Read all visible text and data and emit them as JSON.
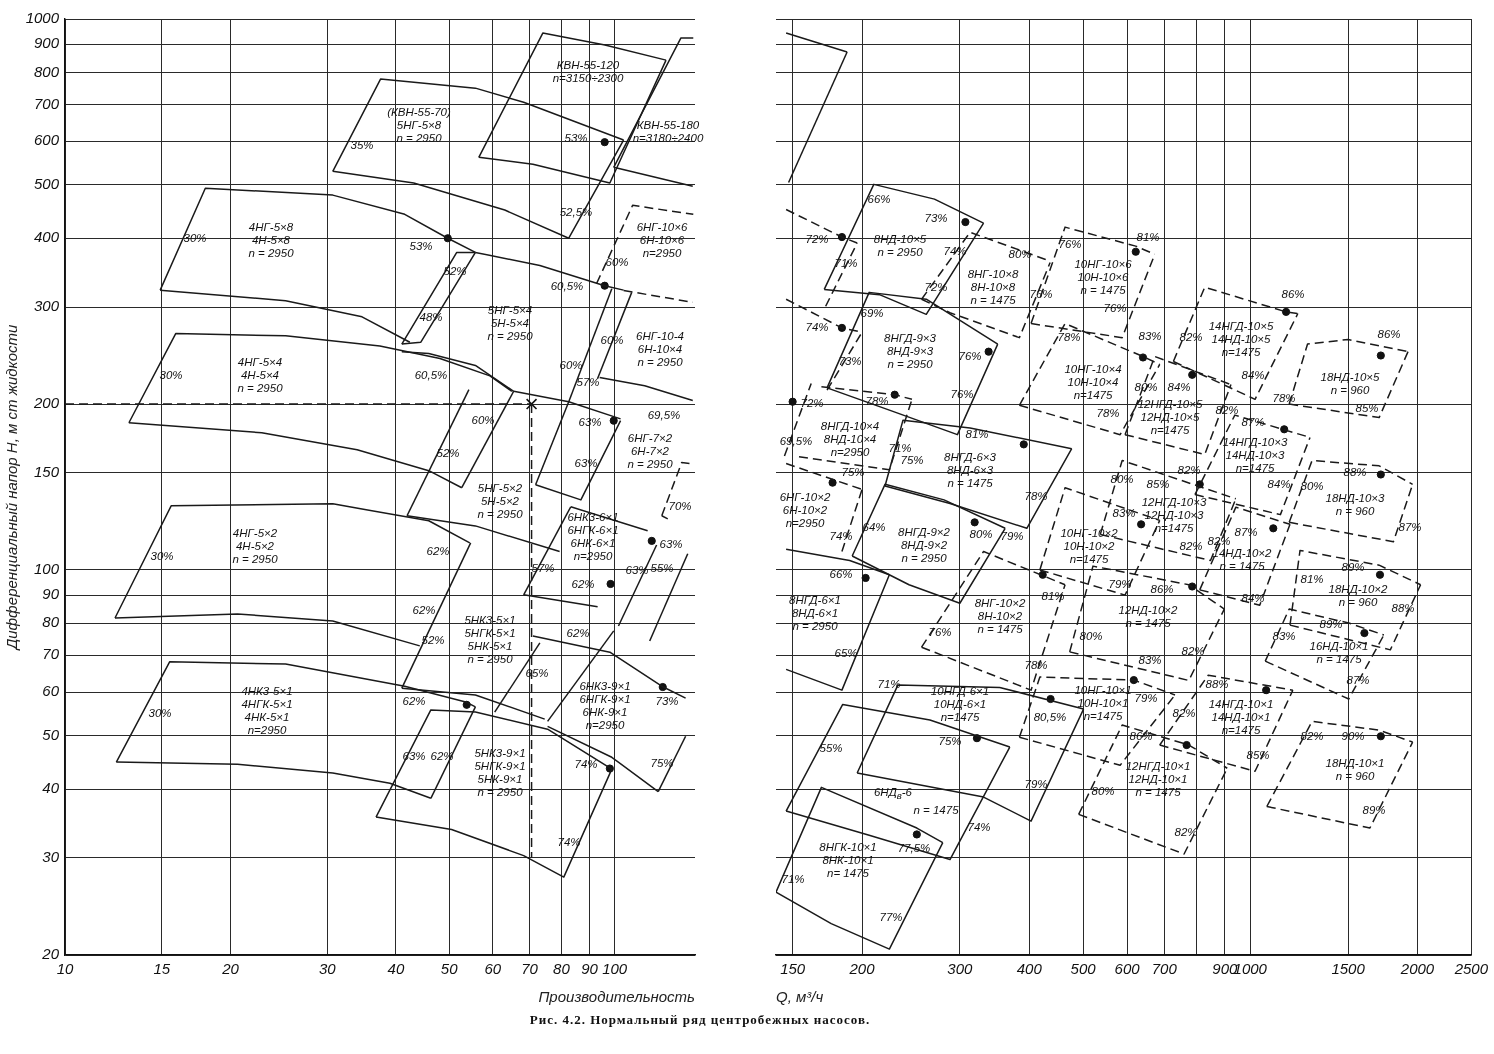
{
  "chart_data": [
    {
      "type": "line",
      "xlabel": "Производительность",
      "ylabel": "Дифференциальный напор H, м ст жидкости",
      "log": "xy",
      "xlim": [
        10,
        140
      ],
      "ylim": [
        20,
        1000
      ],
      "xticks": [
        10,
        15,
        20,
        30,
        40,
        50,
        60,
        70,
        80,
        90,
        100
      ],
      "yticks": [
        20,
        30,
        40,
        50,
        60,
        70,
        80,
        90,
        100,
        150,
        200,
        300,
        400,
        500,
        600,
        700,
        800,
        900,
        1000
      ],
      "grid": true,
      "line_style": "solid",
      "series": [
        {
          "color": "#1a1a1a",
          "x": [
            56.6,
            74,
            96,
            124
          ],
          "values": [
            561,
            943,
            897,
            842
          ]
        },
        {
          "color": "#1a1a1a",
          "x": [
            56.6,
            71,
            98,
            124
          ],
          "values": [
            561,
            545,
            504,
            842
          ]
        },
        {
          "color": "#1a1a1a",
          "x": [
            30.7,
            37.5,
            55.8,
            68.3,
            103.8
          ],
          "values": [
            529,
            778,
            749,
            706,
            603
          ]
        },
        {
          "color": "#1a1a1a",
          "x": [
            30.7,
            43.1,
            63.1,
            82.5,
            103.8
          ],
          "values": [
            529,
            504,
            450,
            400,
            603
          ]
        },
        {
          "color": "#1a1a1a",
          "x": [
            99.6,
            132,
            139
          ],
          "values": [
            538,
            924,
            924
          ]
        },
        {
          "color": "#1a1a1a",
          "x": [
            99.6,
            138.7
          ],
          "values": [
            538,
            497
          ]
        },
        {
          "color": "#1a1a1a",
          "x": [
            14.9,
            25.2,
            34.7,
            42.4
          ],
          "values": [
            322,
            308,
            288,
            259
          ]
        },
        {
          "color": "#1a1a1a",
          "x": [
            14.9,
            18,
            30.7,
            41.5,
            49.7,
            55.8
          ],
          "values": [
            322,
            493,
            479,
            442,
            400,
            377
          ]
        },
        {
          "color": "#1a1a1a",
          "x": [
            41,
            51.6,
            55.8
          ],
          "values": [
            257,
            377,
            377
          ]
        },
        {
          "color": "#1a1a1a",
          "x": [
            41,
            44.4,
            55.8
          ],
          "values": [
            257,
            259,
            377
          ]
        },
        {
          "color": "#1a1a1a",
          "x": [
            55.8,
            73.1,
            95.9,
            103.8
          ],
          "values": [
            377,
            357,
            328,
            322
          ]
        },
        {
          "color": "#1a1a1a",
          "x": [
            82.5,
            98.8
          ],
          "values": [
            202,
            324
          ]
        },
        {
          "color": "#1a1a1a",
          "x": [
            93.1,
            107.4
          ],
          "values": [
            222.5,
            319
          ]
        },
        {
          "color": "#1a1a1a",
          "x": [
            41,
            45.9,
            55.8,
            65.5,
            82.5,
            102.5
          ],
          "values": [
            249,
            247,
            235,
            211,
            202,
            188
          ]
        },
        {
          "color": "#1a1a1a",
          "x": [
            13.07,
            15.9,
            25.2,
            37.4,
            48.1,
            59.3,
            65
          ],
          "values": [
            185,
            268.5,
            266,
            255,
            242,
            225,
            211
          ]
        },
        {
          "color": "#1a1a1a",
          "x": [
            13.07,
            22.8,
            34,
            45.9,
            52.7
          ],
          "values": [
            185,
            177.4,
            165.3,
            151.4,
            141
          ]
        },
        {
          "color": "#1a1a1a",
          "x": [
            41.9,
            54.3
          ],
          "values": [
            125.4,
            212.5
          ]
        },
        {
          "color": "#1a1a1a",
          "x": [
            41.9,
            55.8,
            79.4
          ],
          "values": [
            125.4,
            120.2,
            108
          ]
        },
        {
          "color": "#1a1a1a",
          "x": [
            52.7,
            65.5
          ],
          "values": [
            141,
            211
          ]
        },
        {
          "color": "#1a1a1a",
          "x": [
            71.8,
            82.5
          ],
          "values": [
            142.8,
            202
          ]
        },
        {
          "color": "#1a1a1a",
          "x": [
            71.8,
            86.8,
            102.5
          ],
          "values": [
            142.8,
            134,
            186.6
          ]
        },
        {
          "color": "#1a1a1a",
          "x": [
            93.9,
            113.4,
            138.7
          ],
          "values": [
            223.4,
            216,
            203
          ]
        },
        {
          "color": "#1a1a1a",
          "x": [
            12.33,
            20.6,
            30.7,
            44.2
          ],
          "values": [
            81.8,
            83.2,
            80.8,
            72.8
          ]
        },
        {
          "color": "#1a1a1a",
          "x": [
            12.33,
            15.6,
            30.7,
            45.9,
            54.5
          ],
          "values": [
            81.8,
            130.7,
            131.8,
            122.8,
            112
          ]
        },
        {
          "color": "#1a1a1a",
          "x": [
            41,
            54.7
          ],
          "values": [
            61,
            112
          ]
        },
        {
          "color": "#1a1a1a",
          "x": [
            41,
            55.8,
            74.6
          ],
          "values": [
            61,
            59.3,
            53.6
          ]
        },
        {
          "color": "#1a1a1a",
          "x": [
            60.5,
            73.1
          ],
          "values": [
            55.2,
            73.7
          ]
        },
        {
          "color": "#1a1a1a",
          "x": [
            12.4,
            15.5,
            25.2,
            41.5,
            53.8,
            55.8
          ],
          "values": [
            44.8,
            68.1,
            67.5,
            61.5,
            57.5,
            56.4
          ]
        },
        {
          "color": "#1a1a1a",
          "x": [
            12.4,
            20.6,
            30.7,
            39,
            46.3
          ],
          "values": [
            44.8,
            44.4,
            42.8,
            41,
            38.5
          ]
        },
        {
          "color": "#1a1a1a",
          "x": [
            46.3,
            55.8
          ],
          "values": [
            38.5,
            56.4
          ]
        },
        {
          "color": "#1a1a1a",
          "x": [
            36.8,
            46.3,
            55.8,
            75.5,
            98.8
          ],
          "values": [
            35.6,
            55.7,
            55.2,
            51.4,
            43.5
          ]
        },
        {
          "color": "#1a1a1a",
          "x": [
            36.8,
            50.5,
            68.3,
            80.8,
            98.8
          ],
          "values": [
            35.6,
            33.8,
            30.3,
            27.7,
            43.5
          ]
        },
        {
          "color": "#1a1a1a",
          "x": [
            71,
            98,
            121.8,
            134.6
          ],
          "values": [
            75.9,
            70.9,
            61.5,
            58.5
          ]
        },
        {
          "color": "#1a1a1a",
          "x": [
            75.5,
            99.6
          ],
          "values": [
            53.1,
            77.5
          ]
        },
        {
          "color": "#1a1a1a",
          "x": [
            75.5,
            98.8,
            120
          ],
          "values": [
            52,
            45.7,
            39.6
          ]
        },
        {
          "color": "#1a1a1a",
          "x": [
            120,
            134.6
          ],
          "values": [
            39.6,
            49.9
          ]
        },
        {
          "color": "#1a1a1a",
          "x": [
            83.2,
            114.8
          ],
          "values": [
            130.2,
            117.8
          ]
        },
        {
          "color": "#1a1a1a",
          "x": [
            68.3,
            83.2
          ],
          "values": [
            90.1,
            130.2
          ]
        },
        {
          "color": "#1a1a1a",
          "x": [
            68.3,
            93.1
          ],
          "values": [
            90.1,
            85.7
          ]
        },
        {
          "color": "#1a1a1a",
          "x": [
            101.6,
            119.2
          ],
          "values": [
            79.1,
            111
          ]
        },
        {
          "color": "#1a1a1a",
          "x": [
            115.8,
            135.8
          ],
          "values": [
            74.3,
            107
          ]
        },
        {
          "color": "#1a1a1a",
          "line_style": "dashed",
          "x": [
            92.7,
            107.8,
            139
          ],
          "values": [
            331,
            459,
            442
          ]
        },
        {
          "color": "#1a1a1a",
          "line_style": "dashed",
          "x": [
            103.8,
            138.7
          ],
          "values": [
            321.5,
            306
          ]
        },
        {
          "color": "#1a1a1a",
          "line_style": "dashed",
          "x": [
            10,
            70.6
          ],
          "values": [
            200,
            200
          ]
        },
        {
          "color": "#1a1a1a",
          "line_style": "dashed",
          "x": [
            70.6,
            70.6
          ],
          "values": [
            200,
            30
          ]
        },
        {
          "color": "#1a1a1a",
          "line_style": "dashed",
          "x": [
            121.8,
            132.4,
            136.8
          ],
          "values": [
            125.4,
            156.6,
            156
          ]
        },
        {
          "color": "#1a1a1a",
          "line_style": "dashed",
          "x": [
            121.8,
            124.9
          ],
          "values": [
            125.4,
            123.8
          ]
        },
        {
          "type": "scatter",
          "marker": "circle",
          "color": "#111111",
          "x": [
            95.9,
            49.7,
            95.9,
            99.6,
            98.3,
            116.8,
            122.3,
            53.8,
            98
          ],
          "values": [
            597.6,
            400,
            328,
            186.6,
            94.3,
            112.9,
            61.3,
            56.9,
            43.6
          ]
        },
        {
          "type": "scatter",
          "marker": "cross",
          "color": "#111111",
          "x": [
            70.6
          ],
          "values": [
            200
          ]
        }
      ],
      "annotations": [
        "КВН-55-120\nn=3150÷2300",
        "(КВН-55-70)\n5НГ-5×8\nn = 2950",
        "35%",
        "53%",
        "52,5%",
        "КВН-55-180\nn=3180÷2400",
        "4НГ-5×8\n4Н-5×8\nn = 2950",
        "30%",
        "53%",
        "48%",
        "52%",
        "5НГ-5×4\n5Н-5×4\nn = 2950",
        "60,5%",
        "60%",
        "6НГ-10×6\n6Н-10×6\nn=2950",
        "60%",
        "60%",
        "6НГ-10-4\n6Н-10×4\nn = 2950",
        "4НГ-5×4\n4Н-5×4\nn = 2950",
        "30%",
        "60,5%",
        "52%",
        "60%",
        "5НГ-5×2\n5Н-5×2\nn = 2950",
        "57%",
        "63%",
        "63%",
        "69,5%",
        "6НГ-7×2\n6Н-7×2\nn = 2950",
        "70%",
        "4НГ-5×2\n4Н-5×2\nn = 2950",
        "30%",
        "62%",
        "62%",
        "6НК3-6×1\n6НГК-6×1\n6НК-6×1\nn=2950",
        "57%",
        "62%",
        "63%",
        "63%",
        "55%",
        "5НК3-5×1\n5НГК-5×1\n5НК-5×1\nn = 2950",
        "52%",
        "65%",
        "62%",
        "6НК3-9×1\n6НГК-9×1\n6НК-9×1\nn=2950",
        "73%",
        "75%",
        "4НК3-5×1\n4НГК-5×1\n4НК-5×1\nn=2950",
        "30%",
        "62%",
        "63%",
        "62%",
        "5НК3-9×1\n5НГК-9×1\n5НК-9×1\nn = 2950",
        "74%",
        "74%",
        "Рис. 4.2. Нормальный ряд центробежных насосов."
      ]
    },
    {
      "type": "line",
      "xlabel": "Q, м³/ч",
      "log": "xy",
      "xlim": [
        140,
        2500
      ],
      "ylim": [
        20,
        1000
      ],
      "xticks": [
        150,
        200,
        300,
        400,
        500,
        600,
        700,
        {
          "value": 800,
          "label": null
        },
        900,
        1000,
        1500,
        2000,
        2500
      ],
      "yticks": [
        20,
        30,
        40,
        50,
        60,
        70,
        80,
        90,
        100,
        150,
        200,
        300,
        400,
        500,
        600,
        700,
        800,
        900,
        1000
      ],
      "tick_labels": "x",
      "grid": true,
      "line_style": "solid",
      "series": [
        {
          "color": "#1a1a1a",
          "x": [
            146,
            188
          ],
          "values": [
            943,
            871
          ]
        },
        {
          "color": "#1a1a1a",
          "x": [
            147.5,
            188
          ],
          "values": [
            505,
            871
          ]
        },
        {
          "color": "#1a1a1a",
          "x": [
            171,
            210,
            270,
            331
          ],
          "values": [
            323,
            501,
            471,
            426
          ]
        },
        {
          "color": "#1a1a1a",
          "x": [
            171,
            215,
            261,
            331
          ],
          "values": [
            323,
            316,
            291,
            426
          ]
        },
        {
          "color": "#1a1a1a",
          "x": [
            173,
            206,
            261,
            351
          ],
          "values": [
            214,
            319,
            310,
            257
          ]
        },
        {
          "color": "#1a1a1a",
          "x": [
            173,
            224,
            297,
            351
          ],
          "values": [
            214,
            195,
            176,
            257
          ]
        },
        {
          "color": "#1a1a1a",
          "x": [
            220,
            237,
            313,
            477
          ],
          "values": [
            142,
            187,
            181,
            166
          ]
        },
        {
          "color": "#1a1a1a",
          "x": [
            220,
            288,
            396,
            477
          ],
          "values": [
            142,
            132,
            119,
            166
          ]
        },
        {
          "color": "#1a1a1a",
          "x": [
            192,
            220,
            281,
            362
          ],
          "values": [
            106,
            143,
            134,
            119
          ]
        },
        {
          "color": "#1a1a1a",
          "x": [
            192,
            243,
            300,
            362
          ],
          "values": [
            106,
            94,
            87,
            119
          ]
        },
        {
          "color": "#1a1a1a",
          "x": [
            146,
            190,
            224
          ],
          "values": [
            109,
            104,
            98
          ]
        },
        {
          "color": "#1a1a1a",
          "x": [
            146,
            184,
            224
          ],
          "values": [
            66,
            60.5,
            98
          ]
        },
        {
          "color": "#1a1a1a",
          "x": [
            196,
            232,
            354,
            501
          ],
          "values": [
            42.8,
            61.8,
            61.2,
            55.9
          ]
        },
        {
          "color": "#1a1a1a",
          "x": [
            196,
            331,
            403,
            501
          ],
          "values": [
            42.8,
            38.7,
            35,
            55.9
          ]
        },
        {
          "color": "#1a1a1a",
          "x": [
            146,
            184.6,
            265,
            369
          ],
          "values": [
            36.5,
            57,
            53.4,
            47.7
          ]
        },
        {
          "color": "#1a1a1a",
          "x": [
            146,
            206,
            288,
            369
          ],
          "values": [
            36.5,
            33,
            29.8,
            47.7
          ]
        },
        {
          "color": "#1a1a1a",
          "x": [
            140,
            169,
            251,
            279.5
          ],
          "values": [
            26,
            40.3,
            34,
            32
          ]
        },
        {
          "color": "#1a1a1a",
          "x": [
            140,
            176,
            224,
            279.5
          ],
          "values": [
            26,
            22.8,
            20.5,
            32
          ]
        },
        {
          "color": "#1a1a1a",
          "line_style": "dashed",
          "x": [
            146,
            184,
            196
          ],
          "values": [
            451,
            402,
            392
          ]
        },
        {
          "color": "#1a1a1a",
          "line_style": "dashed",
          "x": [
            172,
            196
          ],
          "values": [
            301,
            392
          ]
        },
        {
          "color": "#1a1a1a",
          "line_style": "dashed",
          "x": [
            146,
            184,
            200
          ],
          "values": [
            310,
            275,
            270
          ]
        },
        {
          "color": "#1a1a1a",
          "line_style": "dashed",
          "x": [
            173,
            200
          ],
          "values": [
            212,
            270
          ]
        },
        {
          "color": "#1a1a1a",
          "line_style": "dashed",
          "x": [
            256,
            313,
            428,
            436
          ],
          "values": [
            310,
            410,
            366,
            361
          ]
        },
        {
          "color": "#1a1a1a",
          "line_style": "dashed",
          "x": [
            256,
            288,
            384,
            436
          ],
          "values": [
            310,
            293,
            264,
            361
          ]
        },
        {
          "color": "#1a1a1a",
          "line_style": "dashed",
          "x": [
            403,
            464,
            622,
            673
          ],
          "values": [
            280,
            419,
            387,
            374
          ]
        },
        {
          "color": "#1a1a1a",
          "line_style": "dashed",
          "x": [
            403,
            588,
            673
          ],
          "values": [
            280,
            264,
            374
          ]
        },
        {
          "color": "#1a1a1a",
          "line_style": "dashed",
          "x": [
            384,
            464,
            641,
            687
          ],
          "values": [
            199,
            280,
            244,
            236
          ]
        },
        {
          "color": "#1a1a1a",
          "line_style": "dashed",
          "x": [
            384,
            583,
            687
          ],
          "values": [
            199,
            176,
            236
          ]
        },
        {
          "color": "#1a1a1a",
          "line_style": "dashed",
          "x": [
            727,
            828,
            1160,
            1218
          ],
          "values": [
            239,
            326,
            294,
            292
          ]
        },
        {
          "color": "#1a1a1a",
          "line_style": "dashed",
          "x": [
            727,
            1020,
            1218
          ],
          "values": [
            239,
            204,
            292
          ]
        },
        {
          "color": "#1a1a1a",
          "line_style": "dashed",
          "x": [
            1175,
            1268,
            1500,
            1923
          ],
          "values": [
            200,
            257,
            262,
            249
          ]
        },
        {
          "color": "#1a1a1a",
          "line_style": "dashed",
          "x": [
            1175,
            1706,
            1923
          ],
          "values": [
            200,
            189,
            249
          ]
        },
        {
          "color": "#1a1a1a",
          "line_style": "dashed",
          "x": [
            169,
            229,
            246
          ],
          "values": [
            215,
            208,
            204
          ]
        },
        {
          "color": "#1a1a1a",
          "line_style": "dashed",
          "x": [
            154,
            224,
            246
          ],
          "values": [
            160.5,
            152,
            204
          ]
        },
        {
          "color": "#1a1a1a",
          "line_style": "dashed",
          "x": [
            145,
            162
          ],
          "values": [
            161,
            218
          ]
        },
        {
          "color": "#1a1a1a",
          "line_style": "dashed",
          "x": [
            146,
            200
          ],
          "values": [
            156,
            140
          ]
        },
        {
          "color": "#1a1a1a",
          "line_style": "dashed",
          "x": [
            184,
            200
          ],
          "values": [
            108,
            140
          ]
        },
        {
          "color": "#1a1a1a",
          "line_style": "dashed",
          "x": [
            256,
            331,
            464
          ],
          "values": [
            72.4,
            108,
            94
          ]
        },
        {
          "color": "#1a1a1a",
          "line_style": "dashed",
          "x": [
            256,
            403,
            464
          ],
          "values": [
            72.4,
            60.5,
            94
          ]
        },
        {
          "color": "#1a1a1a",
          "line_style": "dashed",
          "x": [
            418,
            464,
            687
          ],
          "values": [
            100,
            141,
            123
          ]
        },
        {
          "color": "#1a1a1a",
          "line_style": "dashed",
          "x": [
            418,
            595,
            687
          ],
          "values": [
            100,
            90,
            123
          ]
        },
        {
          "color": "#1a1a1a",
          "line_style": "dashed",
          "x": [
            595,
            673,
            923
          ],
          "values": [
            176,
            244,
            217
          ]
        },
        {
          "color": "#1a1a1a",
          "line_style": "dashed",
          "x": [
            595,
            828,
            923
          ],
          "values": [
            176,
            162,
            217
          ]
        },
        {
          "color": "#1a1a1a",
          "line_style": "dashed",
          "x": [
            795,
            938,
            1281
          ],
          "values": [
            137,
            191,
            174
          ]
        },
        {
          "color": "#1a1a1a",
          "line_style": "dashed",
          "x": [
            795,
            1133,
            1281
          ],
          "values": [
            137,
            126,
            174
          ]
        },
        {
          "color": "#1a1a1a",
          "line_style": "dashed",
          "x": [
            1175,
            1292,
            1706,
            1960
          ],
          "values": [
            122,
            158,
            154.5,
            143
          ]
        },
        {
          "color": "#1a1a1a",
          "line_style": "dashed",
          "x": [
            1175,
            1810,
            1960
          ],
          "values": [
            122,
            112.5,
            143
          ]
        },
        {
          "color": "#1a1a1a",
          "line_style": "dashed",
          "x": [
            537,
            588,
            942
          ],
          "values": [
            116,
            158,
            134.6
          ]
        },
        {
          "color": "#1a1a1a",
          "line_style": "dashed",
          "x": [
            537,
            848,
            942
          ],
          "values": [
            116,
            104,
            134.6
          ]
        },
        {
          "color": "#1a1a1a",
          "line_style": "dashed",
          "x": [
            811,
            942,
            1179
          ],
          "values": [
            92,
            130,
            121
          ]
        },
        {
          "color": "#1a1a1a",
          "line_style": "dashed",
          "x": [
            811,
            1040,
            1179
          ],
          "values": [
            92,
            86.3,
            121
          ]
        },
        {
          "color": "#1a1a1a",
          "line_style": "dashed",
          "x": [
            473,
            521,
            775,
            898
          ],
          "values": [
            71,
            101.6,
            94,
            84.9
          ]
        },
        {
          "color": "#1a1a1a",
          "line_style": "dashed",
          "x": [
            473,
            775,
            898
          ],
          "values": [
            71,
            63,
            84.9
          ]
        },
        {
          "color": "#1a1a1a",
          "line_style": "dashed",
          "x": [
            1179,
            1229,
            1706,
            2026
          ],
          "values": [
            79.4,
            108.5,
            102,
            94
          ]
        },
        {
          "color": "#1a1a1a",
          "line_style": "dashed",
          "x": [
            1179,
            1787,
            2026
          ],
          "values": [
            79.4,
            71.6,
            94
          ]
        },
        {
          "color": "#1a1a1a",
          "line_style": "dashed",
          "x": [
            1064,
            1175,
            1504,
            1740
          ],
          "values": [
            68.3,
            84.9,
            80.1,
            76.2
          ]
        },
        {
          "color": "#1a1a1a",
          "line_style": "dashed",
          "x": [
            1064,
            1504,
            1740
          ],
          "values": [
            68.3,
            58.3,
            76.2
          ]
        },
        {
          "color": "#1a1a1a",
          "line_style": "dashed",
          "x": [
            384,
            418,
            617,
            732
          ],
          "values": [
            49.7,
            63.9,
            63.1,
            59.3
          ]
        },
        {
          "color": "#1a1a1a",
          "line_style": "dashed",
          "x": [
            384,
            583,
            732
          ],
          "values": [
            49.7,
            44.2,
            59.3
          ]
        },
        {
          "color": "#1a1a1a",
          "line_style": "dashed",
          "x": [
            687,
            840,
            1193
          ],
          "values": [
            48.1,
            64.4,
            60.5
          ]
        },
        {
          "color": "#1a1a1a",
          "line_style": "dashed",
          "x": [
            687,
            1020,
            1193
          ],
          "values": [
            48.1,
            43.1,
            60.5
          ]
        },
        {
          "color": "#1a1a1a",
          "line_style": "dashed",
          "x": [
            491,
            588,
            775,
            909
          ],
          "values": [
            36,
            52.3,
            48.1,
            43.65
          ]
        },
        {
          "color": "#1a1a1a",
          "line_style": "dashed",
          "x": [
            491,
            760,
            909
          ],
          "values": [
            36,
            30.5,
            43.65
          ]
        },
        {
          "color": "#1a1a1a",
          "line_style": "dashed",
          "x": [
            1071,
            1292,
            1706,
            1960
          ],
          "values": [
            37.2,
            53.1,
            51.2,
            48.7
          ]
        },
        {
          "color": "#1a1a1a",
          "line_style": "dashed",
          "x": [
            1071,
            1642,
            1960
          ],
          "values": [
            37.2,
            34,
            48.7
          ]
        },
        {
          "type": "scatter",
          "marker": "circle",
          "color": "#111111",
          "x": [
            184,
            307,
            184,
            338,
            622,
            641,
            1160,
            1718,
            229,
            150,
            391,
            177,
            319,
            203,
            423,
            636,
            786,
            1151,
            811,
            1718,
            1100,
            786,
            1712,
            1605,
            322,
            437,
            617,
            1068,
            768,
            1718,
            251
          ],
          "values": [
            402,
            428,
            275,
            249,
            378,
            243,
            294,
            245,
            208,
            202,
            169,
            144,
            122,
            96.7,
            98,
            121,
            226,
            180,
            143,
            149,
            119,
            93.3,
            98,
            76.8,
            49.5,
            58.3,
            63.1,
            60.5,
            48.1,
            49.9,
            33.1
          ]
        }
      ],
      "annotations": [
        "73%",
        "8НД-10×5\nn = 2950",
        "66%",
        "71%",
        "72%",
        "74%",
        "72%",
        "74%",
        "73%",
        "8НГД-9×3\n8НД-9×3\nn = 2950",
        "76%",
        "69%",
        "76%",
        "8НГ-10×8\n8Н-10×8\nn = 1475",
        "80%",
        "76%",
        "81%",
        "10НГ-10×6\n10Н-10×6\nn = 1475",
        "76%",
        "76%",
        "10НГ-10×4\n10Н-10×4\nn=1475",
        "83%",
        "78%",
        "78%",
        "86%",
        "14НГД-10×5\n14НД-10×5\nn=1475",
        "82%",
        "84%",
        "86%",
        "18НД-10×5\nn = 960",
        "85%",
        "78%",
        "8НГД-10×4\n8НД-10×4\nn=2950",
        "78%",
        "72%",
        "69,5%",
        "71%",
        "81%",
        "8НГД-6×3\n8НД-6×3\nn = 1475",
        "75%",
        "78%",
        "6НГ-10×2\n6Н-10×2\nn=2950",
        "75%",
        "74%",
        "8НГД-9×2\n8НД-9×2\nn = 2950",
        "80%",
        "64%",
        "79%",
        "8НГД-6×1\n8НД-6×1\nn = 2950",
        "66%",
        "65%",
        "8НГ-10×2\n8Н-10×2\nn = 1475",
        "81%",
        "76%",
        "78%",
        "10НГ-10×2\n10Н-10×2\nn=1475",
        "83%",
        "79%",
        "80%",
        "12НГД-10×5\n12НД-10×5\nn=1475",
        "84%",
        "80%",
        "82%",
        "87%",
        "14НГД-10×3\n14НД-10×3\nn=1475",
        "82%",
        "84%",
        "88%",
        "18НД-10×3\nn = 960",
        "80%",
        "87%",
        "85%",
        "12НГД-10×3\n12НД-10×3\nn=1475",
        "80%",
        "82%",
        "82%",
        "87%",
        "14НД-10×2\nn = 1475",
        "84%",
        "86%",
        "12НД-10×2\nn = 1475",
        "83%",
        "82%",
        "89%",
        "18НД-10×2\nn = 960",
        "81%",
        "88%",
        "89%",
        "16НД-10×1\nn = 1475",
        "83%",
        "87%",
        "10НГД-6×1\n10НД-6×1\nn=1475",
        "71%",
        "75%",
        "79%",
        "55%",
        "6НД$_{в}$-6",
        "n = 1475",
        "74%",
        "8НГК-10×1\n8НК-10×1\nn= 1475",
        "77,5%",
        "71%",
        "77%",
        "80,5%",
        "10НГ-10×1\n10Н-10×1\nn=1475",
        "79%",
        "88%",
        "14НГД-10×1\n14НД-10×1\nn=1475",
        "82%",
        "85%",
        "86%",
        "12НГД-10×1\n12НД-10×1\nn = 1475",
        "80%",
        "82%",
        "90%",
        "18НД-10×1\nn = 960",
        "82%",
        "89%"
      ]
    }
  ]
}
